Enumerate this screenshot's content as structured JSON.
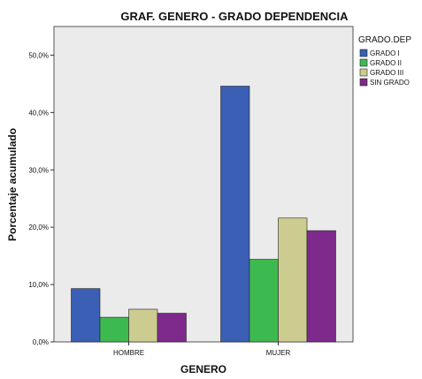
{
  "chart_data": {
    "type": "bar",
    "title": "GRAF. GENERO - GRADO DEPENDENCIA",
    "xlabel": "GENERO",
    "ylabel": "Porcentaje acumulado",
    "categories": [
      "HOMBRE",
      "MUJER"
    ],
    "ylim": [
      0,
      55
    ],
    "yticks": [
      {
        "value": 0,
        "label": "0,0%"
      },
      {
        "value": 10,
        "label": "10,0%"
      },
      {
        "value": 20,
        "label": "20,0%"
      },
      {
        "value": 30,
        "label": "30,0%"
      },
      {
        "value": 40,
        "label": "40,0%"
      },
      {
        "value": 50,
        "label": "50,0%"
      }
    ],
    "grid": false,
    "legend": {
      "title": "GRADO.DEP",
      "position": "right"
    },
    "series": [
      {
        "name": "GRADO I",
        "color": "#3a5fb5",
        "values": [
          9.3,
          44.6
        ]
      },
      {
        "name": "GRADO II",
        "color": "#3dba4f",
        "values": [
          4.3,
          14.4
        ]
      },
      {
        "name": "GRADO III",
        "color": "#cccc90",
        "values": [
          5.7,
          21.6
        ]
      },
      {
        "name": "SIN GRADO",
        "color": "#7e2a8c",
        "values": [
          5.0,
          19.4
        ]
      }
    ],
    "plot_background": "#ebebeb"
  }
}
